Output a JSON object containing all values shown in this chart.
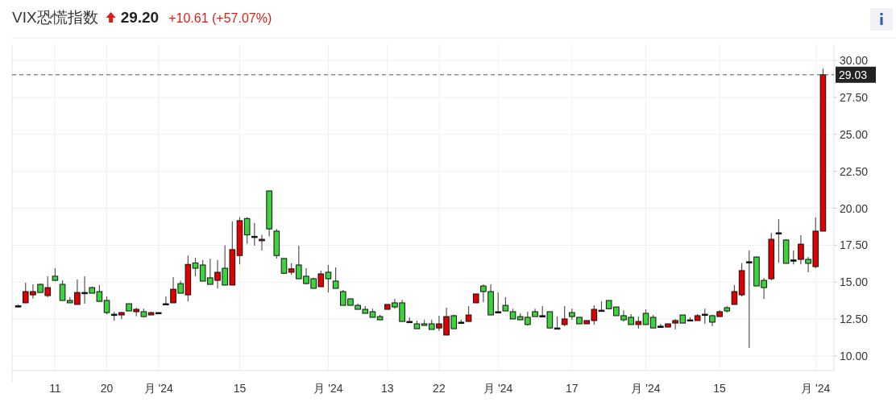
{
  "chart_data": {
    "type": "candlestick",
    "title": "VIX恐慌指数",
    "annotations": [
      "29.20",
      "+10.61 (+57.07%)"
    ],
    "categories": [
      null,
      null,
      null,
      null,
      null,
      "11",
      null,
      null,
      null,
      null,
      null,
      null,
      "20",
      null,
      null,
      null,
      null,
      null,
      null,
      "月 '24",
      null,
      null,
      null,
      null,
      null,
      null,
      null,
      null,
      null,
      null,
      "15",
      null,
      null,
      null,
      null,
      null,
      null,
      null,
      null,
      null,
      null,
      null,
      "月 '24",
      null,
      null,
      null,
      null,
      null,
      null,
      null,
      "13",
      null,
      null,
      null,
      null,
      null,
      null,
      "22",
      null,
      null,
      null,
      null,
      null,
      null,
      null,
      "月 '24",
      null,
      null,
      null,
      null,
      null,
      null,
      null,
      null,
      null,
      "17",
      null,
      null,
      null,
      null,
      null,
      null,
      null,
      null,
      null,
      "月 '24",
      null,
      null,
      null,
      null,
      null,
      null,
      null,
      null,
      null,
      "15",
      null,
      null,
      null,
      null,
      null,
      null,
      null,
      null,
      null,
      null,
      null,
      null,
      "月 '24",
      null
    ],
    "ohlc": [
      [
        13.4,
        13.5,
        13.3,
        13.4
      ],
      [
        13.6,
        14.96,
        13.6,
        14.36
      ],
      [
        14.14,
        14.85,
        13.9,
        14.36
      ],
      [
        14.85,
        14.9,
        14.3,
        14.3
      ],
      [
        14.09,
        15.4,
        13.98,
        14.63
      ],
      [
        15.4,
        15.94,
        15.1,
        15.12
      ],
      [
        14.85,
        15.12,
        13.76,
        13.76
      ],
      [
        13.76,
        13.98,
        13.6,
        13.6
      ],
      [
        13.49,
        15.18,
        13.49,
        14.3
      ],
      [
        14.3,
        15.4,
        13.54,
        14.3
      ],
      [
        14.63,
        14.7,
        14.25,
        14.25
      ],
      [
        14.36,
        14.8,
        13.7,
        13.7
      ],
      [
        13.76,
        14.03,
        12.83,
        12.94
      ],
      [
        12.83,
        13.0,
        12.4,
        12.83
      ],
      [
        12.78,
        13.0,
        12.5,
        12.94
      ],
      [
        13.54,
        13.54,
        13.05,
        13.05
      ],
      [
        13.0,
        13.27,
        12.7,
        13.16
      ],
      [
        13.0,
        13.2,
        12.6,
        12.67
      ],
      [
        12.78,
        13.0,
        12.78,
        12.94
      ],
      [
        12.94,
        12.94,
        12.94,
        12.94
      ],
      [
        13.54,
        14.03,
        13.54,
        13.54
      ],
      [
        13.6,
        15.34,
        13.6,
        14.52
      ],
      [
        14.9,
        15.1,
        14.25,
        14.25
      ],
      [
        14.14,
        16.8,
        13.7,
        16.2
      ],
      [
        16.3,
        16.65,
        15.4,
        15.94
      ],
      [
        16.16,
        16.5,
        15.07,
        15.07
      ],
      [
        15.29,
        16.6,
        14.85,
        14.85
      ],
      [
        15.12,
        16.5,
        14.58,
        15.67
      ],
      [
        15.94,
        17.5,
        14.8,
        14.8
      ],
      [
        14.8,
        19.1,
        14.8,
        17.2
      ],
      [
        16.8,
        19.4,
        16.2,
        19.16
      ],
      [
        19.3,
        19.4,
        17.6,
        18.2
      ],
      [
        18.1,
        19.0,
        17.47,
        18.1
      ],
      [
        17.8,
        18.2,
        17.14,
        17.9
      ],
      [
        21.17,
        21.2,
        18.1,
        18.6
      ],
      [
        18.45,
        18.6,
        16.6,
        16.8
      ],
      [
        16.6,
        16.6,
        15.6,
        15.6
      ],
      [
        15.67,
        16.27,
        15.5,
        15.9
      ],
      [
        16.16,
        17.47,
        15.23,
        15.23
      ],
      [
        15.4,
        15.94,
        14.85,
        14.9
      ],
      [
        15.23,
        15.3,
        14.58,
        14.58
      ],
      [
        14.69,
        15.78,
        14.69,
        15.56
      ],
      [
        15.67,
        16.16,
        14.3,
        15.23
      ],
      [
        15.07,
        16.0,
        14.58,
        14.58
      ],
      [
        14.36,
        14.47,
        13.43,
        13.43
      ],
      [
        13.87,
        13.9,
        13.43,
        13.43
      ],
      [
        13.43,
        13.54,
        13.16,
        13.16
      ],
      [
        13.16,
        13.38,
        12.89,
        12.89
      ],
      [
        13.0,
        13.2,
        12.62,
        12.62
      ],
      [
        12.67,
        12.78,
        12.45,
        12.45
      ],
      [
        13.16,
        13.49,
        13.16,
        13.49
      ],
      [
        13.6,
        13.87,
        13.2,
        13.32
      ],
      [
        13.6,
        13.8,
        12.34,
        12.34
      ],
      [
        12.34,
        12.62,
        12.3,
        12.34
      ],
      [
        12.18,
        12.4,
        11.85,
        11.85
      ],
      [
        12.18,
        12.45,
        12.07,
        12.07
      ],
      [
        12.18,
        12.45,
        11.8,
        11.8
      ],
      [
        11.9,
        12.73,
        11.7,
        12.18
      ],
      [
        11.42,
        13.27,
        11.42,
        12.67
      ],
      [
        12.73,
        12.8,
        11.85,
        11.85
      ],
      [
        12.29,
        12.45,
        12.2,
        12.29
      ],
      [
        12.34,
        13.38,
        12.34,
        12.78
      ],
      [
        13.6,
        14.2,
        13.6,
        14.2
      ],
      [
        14.74,
        14.85,
        13.65,
        14.36
      ],
      [
        14.36,
        14.85,
        12.78,
        12.78
      ],
      [
        13.0,
        14.3,
        13.0,
        13.0
      ],
      [
        13.43,
        13.98,
        13.05,
        13.05
      ],
      [
        13.0,
        13.2,
        12.51,
        12.51
      ],
      [
        12.67,
        12.89,
        12.45,
        12.45
      ],
      [
        12.62,
        13.0,
        12.07,
        12.13
      ],
      [
        13.0,
        13.2,
        12.67,
        12.67
      ],
      [
        12.73,
        13.38,
        12.73,
        12.73
      ],
      [
        13.0,
        13.0,
        11.9,
        11.9
      ],
      [
        11.9,
        12.67,
        11.9,
        11.9
      ],
      [
        12.13,
        13.38,
        12.02,
        12.51
      ],
      [
        12.94,
        13.2,
        12.45,
        12.67
      ],
      [
        12.62,
        12.62,
        12.18,
        12.18
      ],
      [
        12.18,
        12.4,
        12.18,
        12.4
      ],
      [
        12.4,
        13.43,
        12.13,
        13.16
      ],
      [
        13.1,
        13.7,
        13.0,
        13.1
      ],
      [
        13.76,
        13.76,
        13.2,
        13.2
      ],
      [
        13.32,
        13.32,
        12.73,
        12.73
      ],
      [
        12.73,
        13.1,
        12.34,
        12.45
      ],
      [
        12.62,
        12.83,
        12.13,
        12.13
      ],
      [
        12.13,
        12.67,
        11.85,
        12.34
      ],
      [
        12.89,
        13.16,
        12.13,
        12.13
      ],
      [
        12.62,
        12.78,
        11.9,
        11.9
      ],
      [
        12.02,
        12.18,
        12.02,
        12.02
      ],
      [
        11.96,
        12.18,
        11.96,
        12.18
      ],
      [
        12.23,
        12.51,
        11.8,
        12.4
      ],
      [
        12.78,
        12.78,
        12.23,
        12.23
      ],
      [
        12.45,
        12.62,
        12.45,
        12.45
      ],
      [
        12.4,
        12.83,
        12.4,
        12.73
      ],
      [
        12.83,
        13.2,
        12.18,
        12.83
      ],
      [
        12.73,
        12.8,
        12.02,
        12.29
      ],
      [
        12.67,
        13.1,
        12.67,
        13.0
      ],
      [
        13.27,
        13.38,
        12.94,
        13.05
      ],
      [
        13.49,
        14.8,
        13.49,
        14.36
      ],
      [
        14.14,
        16.3,
        14.03,
        15.78
      ],
      [
        16.38,
        17.14,
        10.55,
        16.38
      ],
      [
        16.7,
        16.75,
        14.74,
        14.74
      ],
      [
        15.12,
        15.29,
        13.87,
        14.63
      ],
      [
        15.23,
        18.34,
        15.12,
        17.9
      ],
      [
        18.34,
        19.27,
        16.3,
        18.34
      ],
      [
        17.85,
        17.9,
        16.27,
        16.27
      ],
      [
        16.5,
        17.14,
        16.2,
        16.5
      ],
      [
        16.54,
        18.17,
        16.2,
        17.57
      ],
      [
        16.54,
        16.7,
        15.67,
        16.27
      ],
      [
        16.05,
        19.37,
        15.94,
        18.45
      ],
      [
        18.45,
        29.45,
        18.45,
        29.03
      ]
    ],
    "colors": [
      "#000000",
      "#e00000",
      "#e00000",
      "#3cd33c",
      "#e00000",
      "#3cd33c",
      "#3cd33c",
      "#3cd33c",
      "#e00000",
      "#000000",
      "#3cd33c",
      "#3cd33c",
      "#3cd33c",
      "#000000",
      "#e00000",
      "#3cd33c",
      "#e00000",
      "#3cd33c",
      "#e00000",
      "#000000",
      "#000000",
      "#e00000",
      "#3cd33c",
      "#e00000",
      "#3cd33c",
      "#3cd33c",
      "#3cd33c",
      "#e00000",
      "#3cd33c",
      "#e00000",
      "#e00000",
      "#3cd33c",
      "#000000",
      "#e00000",
      "#3cd33c",
      "#3cd33c",
      "#3cd33c",
      "#e00000",
      "#3cd33c",
      "#3cd33c",
      "#3cd33c",
      "#e00000",
      "#3cd33c",
      "#3cd33c",
      "#3cd33c",
      "#3cd33c",
      "#3cd33c",
      "#3cd33c",
      "#3cd33c",
      "#3cd33c",
      "#e00000",
      "#3cd33c",
      "#3cd33c",
      "#000000",
      "#3cd33c",
      "#3cd33c",
      "#3cd33c",
      "#e00000",
      "#e00000",
      "#3cd33c",
      "#000000",
      "#e00000",
      "#e00000",
      "#3cd33c",
      "#3cd33c",
      "#000000",
      "#3cd33c",
      "#3cd33c",
      "#3cd33c",
      "#3cd33c",
      "#3cd33c",
      "#000000",
      "#3cd33c",
      "#000000",
      "#e00000",
      "#3cd33c",
      "#3cd33c",
      "#e00000",
      "#e00000",
      "#000000",
      "#3cd33c",
      "#3cd33c",
      "#3cd33c",
      "#3cd33c",
      "#e00000",
      "#3cd33c",
      "#3cd33c",
      "#000000",
      "#e00000",
      "#e00000",
      "#3cd33c",
      "#000000",
      "#e00000",
      "#000000",
      "#3cd33c",
      "#e00000",
      "#3cd33c",
      "#e00000",
      "#e00000",
      "#000000",
      "#3cd33c",
      "#3cd33c",
      "#e00000",
      "#000000",
      "#3cd33c",
      "#000000",
      "#e00000",
      "#3cd33c",
      "#e00000",
      "#e00000"
    ],
    "ylim": [
      9.02,
      31.09
    ],
    "yticks": [
      {
        "value": 10,
        "label": "10.00"
      },
      {
        "value": 12.5,
        "label": "12.50"
      },
      {
        "value": 15,
        "label": "15.00"
      },
      {
        "value": 17.5,
        "label": "17.50"
      },
      {
        "value": 20,
        "label": "20.00"
      },
      {
        "value": 22.5,
        "label": "22.50"
      },
      {
        "value": 25,
        "label": "25.00"
      },
      {
        "value": 27.5,
        "label": "27.50"
      },
      {
        "value": 30,
        "label": "30.00"
      }
    ],
    "ref_lines": [
      {
        "axis": "y",
        "value": 29.03,
        "label": "29.03",
        "color": "#555555",
        "line_style": "dashed"
      }
    ],
    "grid": true
  }
}
